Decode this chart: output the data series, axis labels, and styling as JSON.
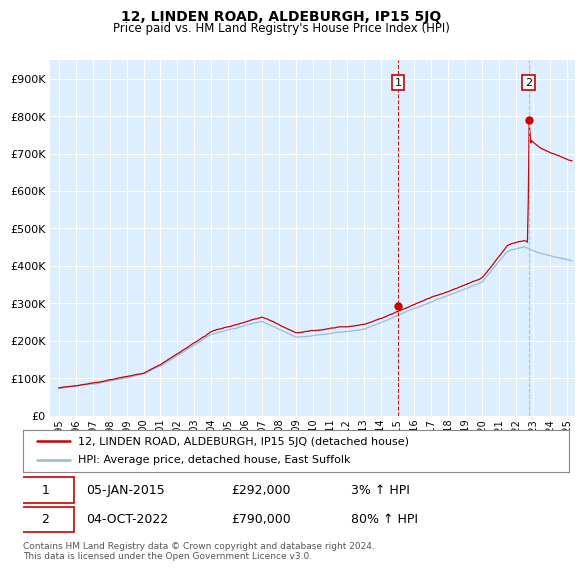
{
  "title": "12, LINDEN ROAD, ALDEBURGH, IP15 5JQ",
  "subtitle": "Price paid vs. HM Land Registry's House Price Index (HPI)",
  "ylabel_ticks": [
    "£0",
    "£100K",
    "£200K",
    "£300K",
    "£400K",
    "£500K",
    "£600K",
    "£700K",
    "£800K",
    "£900K"
  ],
  "ytick_values": [
    0,
    100000,
    200000,
    300000,
    400000,
    500000,
    600000,
    700000,
    800000,
    900000
  ],
  "ylim": [
    0,
    950000
  ],
  "xlim_start": 1994.5,
  "xlim_end": 2025.5,
  "xticks": [
    1995,
    1996,
    1997,
    1998,
    1999,
    2000,
    2001,
    2002,
    2003,
    2004,
    2005,
    2006,
    2007,
    2008,
    2009,
    2010,
    2011,
    2012,
    2013,
    2014,
    2015,
    2016,
    2017,
    2018,
    2019,
    2020,
    2021,
    2022,
    2023,
    2024,
    2025
  ],
  "hpi_line_color": "#99bbdd",
  "price_line_color": "#cc0000",
  "sale1_x": 2015.03,
  "sale1_y": 292000,
  "sale2_x": 2022.75,
  "sale2_y": 790000,
  "sale1_label": "1",
  "sale2_label": "2",
  "vline1_color": "#cc0000",
  "vline2_color": "#aabbcc",
  "vline_style": "--",
  "annotation_date1": "05-JAN-2015",
  "annotation_price1": "£292,000",
  "annotation_hpi1": "3% ↑ HPI",
  "annotation_date2": "04-OCT-2022",
  "annotation_price2": "£790,000",
  "annotation_hpi2": "80% ↑ HPI",
  "legend_line1": "12, LINDEN ROAD, ALDEBURGH, IP15 5JQ (detached house)",
  "legend_line2": "HPI: Average price, detached house, East Suffolk",
  "footer": "Contains HM Land Registry data © Crown copyright and database right 2024.\nThis data is licensed under the Open Government Licence v3.0.",
  "bg_color": "#ffffff",
  "plot_bg_color": "#ddeeff",
  "grid_color": "#ffffff"
}
